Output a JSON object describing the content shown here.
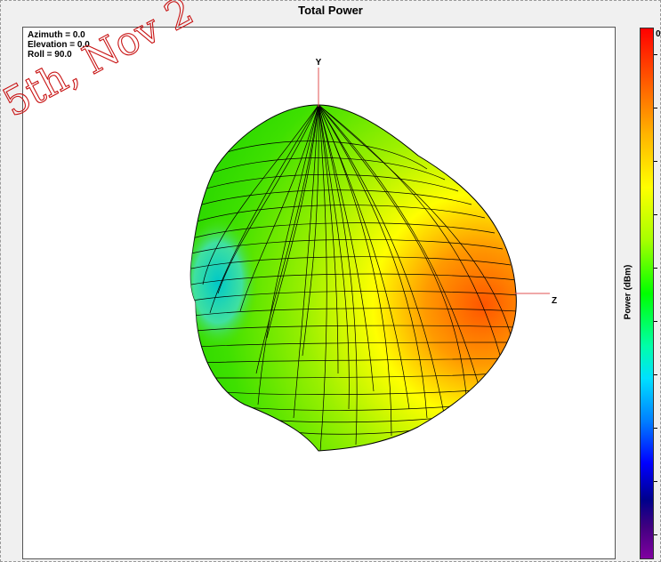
{
  "title": "Total Power",
  "orientation": {
    "azimuth": "Azimuth = 0.0",
    "elevation": "Elevation = 0.0",
    "roll": "Roll = 90.0"
  },
  "axes": {
    "y_label": "Y",
    "z_label": "Z"
  },
  "colorbar": {
    "label": "Power  (dBm)",
    "top_label": "0",
    "colors": [
      "#ff0000",
      "#ffff00",
      "#00ff00",
      "#00e0ff",
      "#0000ff",
      "#8000a0"
    ]
  },
  "watermark": {
    "text": "5th, Nov 2",
    "color": "#c81414"
  }
}
